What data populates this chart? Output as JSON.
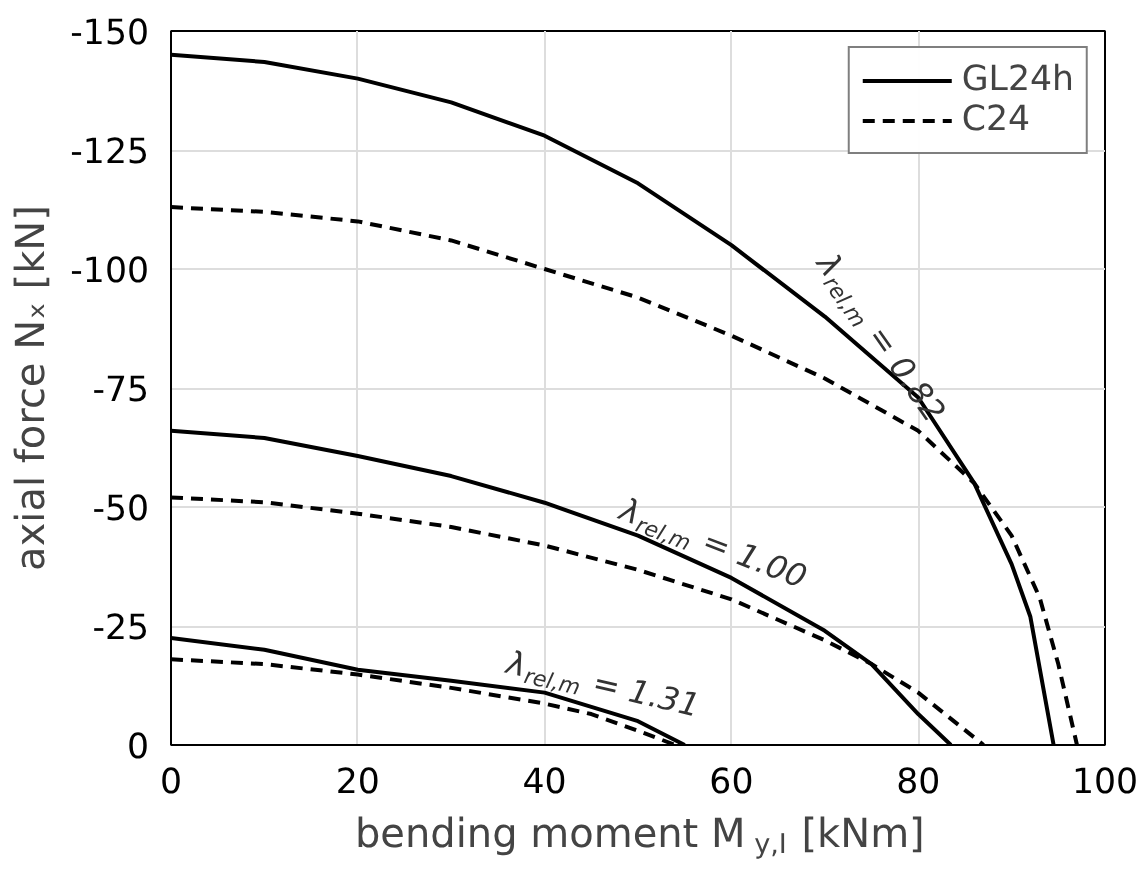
{
  "chart_data": {
    "type": "line",
    "xlabel": "bending moment M$_{y,I}$ [kNm]",
    "ylabel": "axial force Nₓ [kN]",
    "xlim": [
      0,
      100
    ],
    "xticks": [
      0,
      20,
      40,
      60,
      80,
      100
    ],
    "ylim": [
      0,
      -150
    ],
    "yticks": [
      0,
      -25,
      -50,
      -75,
      -100,
      -125,
      -150
    ],
    "grid": true,
    "legend": "top right",
    "series": [
      {
        "name": "GL24h",
        "color": "#000000",
        "line_style": "solid",
        "x": [
          0,
          10,
          20,
          30,
          40,
          50,
          60,
          70,
          80,
          86,
          90,
          92,
          94.5
        ],
        "values": [
          -145,
          -143.5,
          -140,
          -135,
          -128,
          -118,
          -105,
          -90,
          -73,
          -55,
          -38,
          -27,
          0
        ]
      },
      {
        "name": "C24",
        "color": "#000000",
        "line_style": "dashed",
        "x": [
          0,
          10,
          20,
          30,
          40,
          50,
          60,
          70,
          80,
          86,
          90,
          93,
          95,
          97
        ],
        "values": [
          -113,
          -112,
          -110,
          -106,
          -100,
          -94,
          -86,
          -77,
          -66,
          -55,
          -44,
          -31,
          -17,
          0
        ]
      },
      {
        "color": "#000000",
        "line_style": "solid",
        "x": [
          0,
          10,
          20,
          30,
          40,
          50,
          60,
          70,
          75,
          80,
          83.5
        ],
        "values": [
          -66,
          -64.5,
          -60.7,
          -56.5,
          -50.9,
          -44,
          -35.1,
          -24,
          -17,
          -6.5,
          0
        ]
      },
      {
        "color": "#000000",
        "line_style": "dashed",
        "x": [
          0,
          10,
          20,
          30,
          40,
          50,
          60,
          70,
          75,
          80,
          87
        ],
        "values": [
          -52,
          -51,
          -48.6,
          -45.8,
          -41.9,
          -36.8,
          -30.6,
          -22,
          -17,
          -11,
          0
        ]
      },
      {
        "color": "#000000",
        "line_style": "solid",
        "x": [
          0,
          10,
          20,
          30,
          40,
          45,
          50,
          55
        ],
        "values": [
          -22.5,
          -20,
          -15.8,
          -13.5,
          -11,
          -8,
          -5,
          0
        ]
      },
      {
        "color": "#000000",
        "line_style": "dashed",
        "x": [
          0,
          10,
          20,
          30,
          40,
          45,
          50,
          54
        ],
        "values": [
          -18,
          -17,
          -14.8,
          -12,
          -8.7,
          -6.5,
          -3,
          0
        ]
      }
    ],
    "annotations": [
      "λ$_{rel,m}$ = 0.82",
      "λ$_{rel,m}$ = 1.00",
      "λ$_{rel,m}$ = 1.31"
    ]
  }
}
